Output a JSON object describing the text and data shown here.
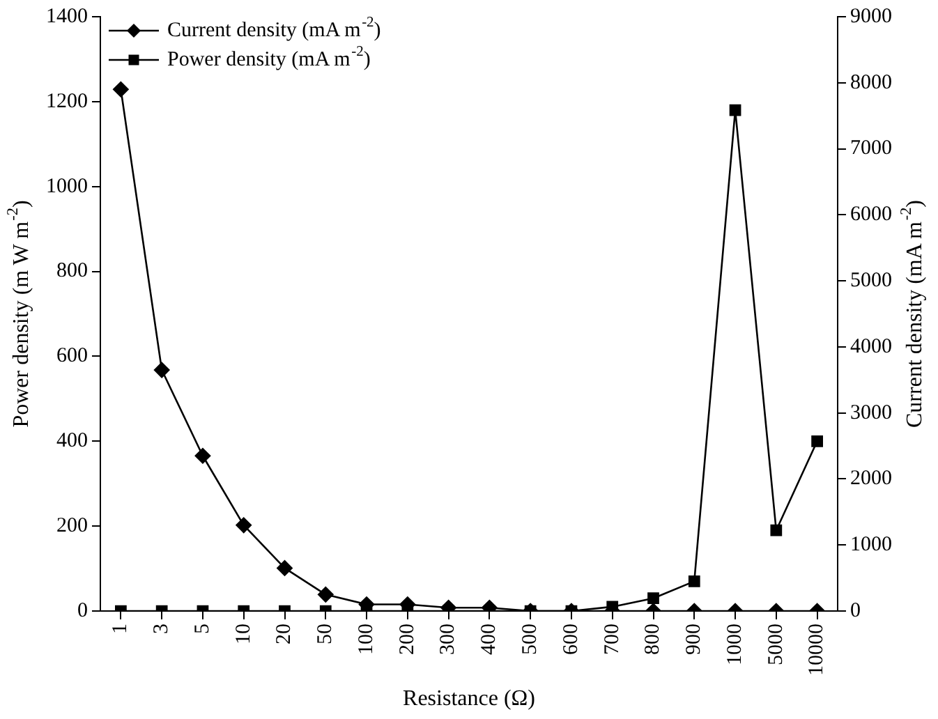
{
  "chart_data": {
    "type": "line",
    "xlabel": "Resistance (Ω)",
    "ylabel": "Power density (m W m$^{-2}$)",
    "y2label": "Current density (mA m$^{-2}$)",
    "categories": [
      "1",
      "3",
      "5",
      "10",
      "20",
      "50",
      "100",
      "200",
      "300",
      "400",
      "500",
      "600",
      "700",
      "800",
      "900",
      "1000",
      "5000",
      "10000"
    ],
    "series": [
      {
        "name": "Current density (mA m$^{-2}$)",
        "color": "#000000",
        "marker": "diamond",
        "axis": "y2",
        "values": [
          7900,
          3650,
          2350,
          1300,
          650,
          250,
          100,
          100,
          50,
          50,
          0,
          0,
          0,
          0,
          0,
          0,
          0,
          0
        ]
      },
      {
        "name": "Power density (mA m$^{-2}$)",
        "color": "#000000",
        "marker": "square",
        "values": [
          0,
          0,
          0,
          0,
          0,
          0,
          0,
          0,
          0,
          0,
          0,
          0,
          10,
          30,
          70,
          1180,
          190,
          400
        ]
      }
    ],
    "ylim": [
      0,
      1400
    ],
    "yticks": [
      0,
      200,
      400,
      600,
      800,
      1000,
      1200,
      1400
    ],
    "y2lim": [
      0,
      9000
    ],
    "y2ticks": [
      0,
      1000,
      2000,
      3000,
      4000,
      5000,
      6000,
      7000,
      8000,
      9000
    ],
    "grid": false,
    "legend": "top left",
    "line_style": "solid"
  }
}
